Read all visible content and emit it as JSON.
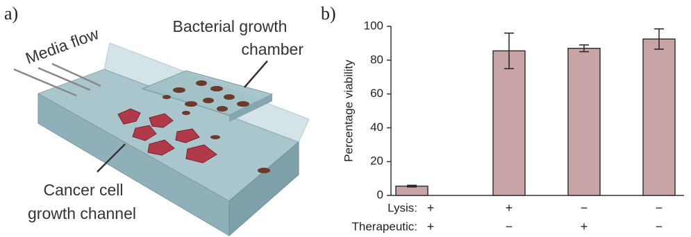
{
  "panel_labels": [
    "a)",
    "b)"
  ],
  "illustration": {
    "media_flow": "Media flow",
    "chamber": [
      "Bacterial growth",
      "chamber"
    ],
    "channel": [
      "Cancer cell",
      "growth channel"
    ]
  },
  "chart_data": {
    "type": "bar",
    "ylabel": "Percentage viability",
    "series": [
      {
        "name": "Percentage viability",
        "color": "#c9a4a7",
        "values": [
          5.5,
          85.5,
          87,
          92.5
        ],
        "errors": [
          0.5,
          10.5,
          2,
          6
        ]
      }
    ],
    "conditions": [
      {
        "name": "Lysis:",
        "signs": [
          "+",
          "+",
          "−",
          "−"
        ]
      },
      {
        "name": "Therapeutic:",
        "signs": [
          "+",
          "−",
          "+",
          "−"
        ]
      }
    ],
    "ylim": [
      0,
      100
    ],
    "yticks": [
      0,
      20,
      40,
      60,
      80,
      100
    ]
  }
}
